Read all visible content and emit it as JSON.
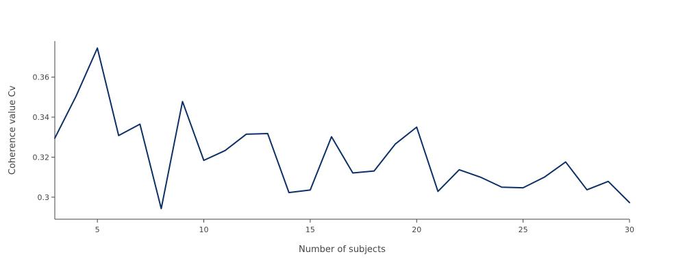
{
  "chart_data": {
    "type": "line",
    "title": "",
    "xlabel": "Number of subjects",
    "ylabel": "Coherence value Cv",
    "xlim": [
      3,
      30
    ],
    "ylim": [
      0.289,
      0.378
    ],
    "grid": false,
    "legend": "none",
    "x_ticks": [
      5,
      10,
      15,
      20,
      25,
      30
    ],
    "x_tick_labels": [
      "5",
      "10",
      "15",
      "20",
      "25",
      "30"
    ],
    "y_ticks": [
      0.3,
      0.32,
      0.34,
      0.36
    ],
    "y_tick_labels": [
      "0.3",
      "0.32",
      "0.34",
      "0.36"
    ],
    "series": [
      {
        "color": "#0b3068",
        "x": [
          3,
          4,
          5,
          6,
          7,
          8,
          9,
          10,
          11,
          12,
          13,
          14,
          15,
          16,
          17,
          18,
          19,
          20,
          21,
          22,
          23,
          24,
          25,
          26,
          27,
          28,
          29,
          30
        ],
        "y": [
          0.3295,
          0.3505,
          0.3745,
          0.3308,
          0.3365,
          0.2943,
          0.3478,
          0.3184,
          0.3233,
          0.3315,
          0.3318,
          0.3023,
          0.3036,
          0.3302,
          0.3121,
          0.3131,
          0.3266,
          0.335,
          0.3029,
          0.3137,
          0.31,
          0.305,
          0.3047,
          0.31,
          0.3176,
          0.3037,
          0.3079,
          0.2973
        ]
      }
    ]
  }
}
